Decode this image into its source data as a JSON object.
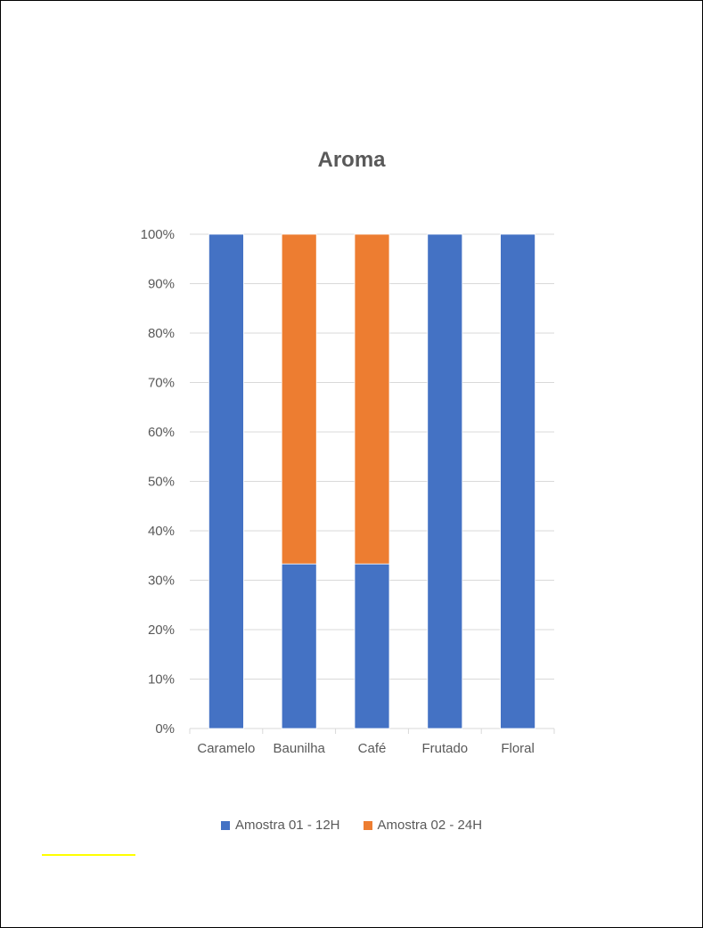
{
  "chart_data": {
    "type": "bar",
    "stacked": true,
    "percent_stacked": true,
    "title": "Aroma",
    "xlabel": "",
    "ylabel": "",
    "categories": [
      "Caramelo",
      "Baunilha",
      "Café",
      "Frutado",
      "Floral"
    ],
    "series": [
      {
        "name": "Amostra 01 - 12H",
        "values": [
          100,
          33.3,
          33.3,
          100,
          100
        ],
        "color": "#4472C4"
      },
      {
        "name": "Amostra 02 - 24H",
        "values": [
          0,
          66.7,
          66.7,
          0,
          0
        ],
        "color": "#ED7D31"
      }
    ],
    "ylim": [
      0,
      100
    ],
    "yticks": [
      "0%",
      "10%",
      "20%",
      "30%",
      "40%",
      "50%",
      "60%",
      "70%",
      "80%",
      "90%",
      "100%"
    ],
    "grid": true,
    "legend_position": "bottom"
  },
  "colors": {
    "gridline": "#D9D9D9",
    "axis_text": "#595959",
    "highlight_line": "#FFFF00"
  }
}
